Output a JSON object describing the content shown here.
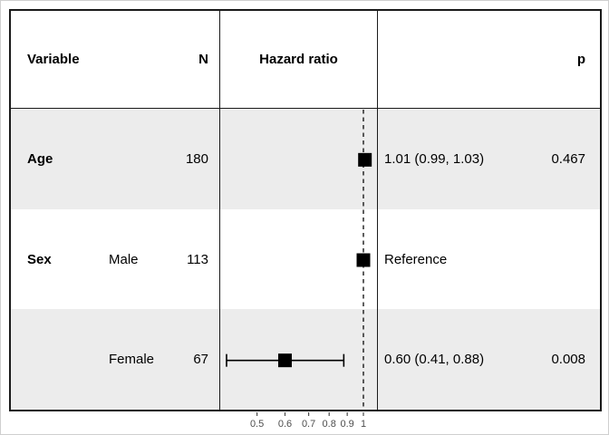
{
  "figure": {
    "header": {
      "variable": "Variable",
      "n": "N",
      "hazard_ratio": "Hazard ratio",
      "p": "p"
    }
  },
  "chart_data": {
    "type": "scatter",
    "subtype": "forest-plot-hazard-ratio",
    "title": "",
    "columns": [
      "Variable",
      "N",
      "Hazard ratio",
      "p"
    ],
    "x_scale": "log10",
    "x_ticks": [
      0.5,
      0.6,
      0.7,
      0.8,
      0.9,
      1
    ],
    "x_range": [
      0.4,
      1.1
    ],
    "reference_line_x": 1,
    "grid": false,
    "legend_position": "none",
    "rows": [
      {
        "variable": "Age",
        "level": "",
        "n": "180",
        "estimate": 1.01,
        "ci_low": 0.99,
        "ci_high": 1.03,
        "estimate_label": "1.01 (0.99, 1.03)",
        "p": "0.467",
        "shaded": true
      },
      {
        "variable": "Sex",
        "level": "Male",
        "n": "113",
        "estimate": 1.0,
        "reference": true,
        "estimate_label": "Reference",
        "p": "",
        "shaded": false
      },
      {
        "variable": "",
        "level": "Female",
        "n": "67",
        "estimate": 0.6,
        "ci_low": 0.41,
        "ci_high": 0.88,
        "estimate_label": "0.60 (0.41, 0.88)",
        "p": "0.008",
        "shaded": true
      }
    ]
  },
  "colors": {
    "stripe": "#ececec",
    "table_border": "#1a1a1a",
    "marker": "#000000",
    "reference_line": "#1a1a1a",
    "axis_text": "#4d4d4d"
  }
}
